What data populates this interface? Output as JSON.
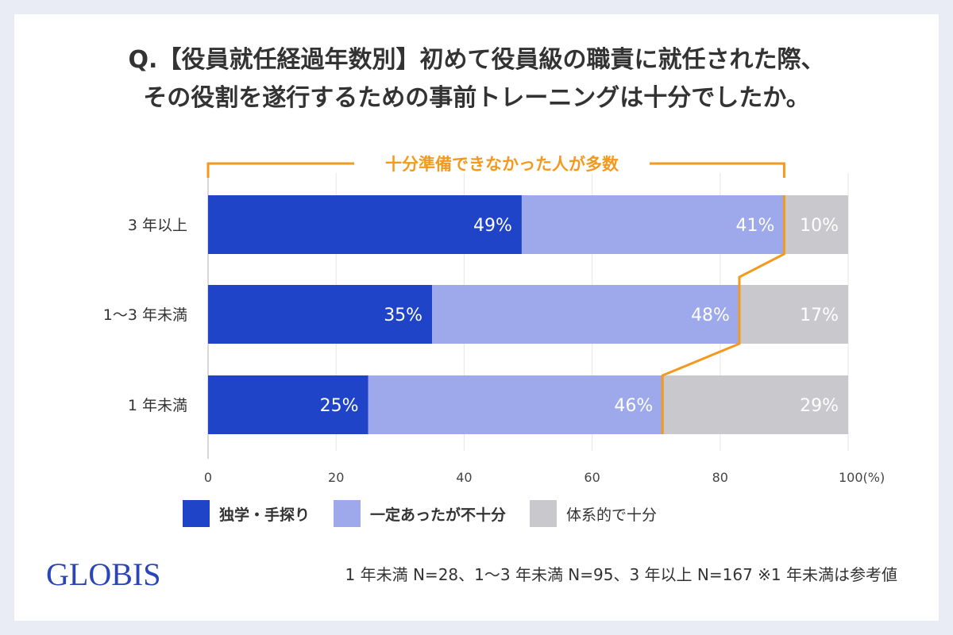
{
  "title": {
    "line1": "Q.【役員就任経過年数別】初めて役員級の職責に就任された際、",
    "line2": "その役割を遂行するための事前トレーニングは十分でしたか。"
  },
  "annotation": "十分準備できなかった人が多数",
  "chart_data": {
    "type": "bar",
    "orientation": "horizontal",
    "stacked": true,
    "categories": [
      "3 年以上",
      "1〜3 年未満",
      "1 年未満"
    ],
    "series": [
      {
        "name": "独学・手探り",
        "values": [
          49,
          35,
          25
        ],
        "color": "#1f44c8"
      },
      {
        "name": "一定あったが不十分",
        "values": [
          41,
          48,
          46
        ],
        "color": "#9da9ea"
      },
      {
        "name": "体系的で十分",
        "values": [
          10,
          17,
          29
        ],
        "color": "#c9c9cd"
      }
    ],
    "value_labels": [
      [
        "49%",
        "41%",
        "10%"
      ],
      [
        "35%",
        "48%",
        "17%"
      ],
      [
        "25%",
        "46%",
        "29%"
      ]
    ],
    "xlim": [
      0,
      100
    ],
    "x_ticks": [
      "0",
      "20",
      "40",
      "60",
      "80",
      "100(%)"
    ],
    "grid": true,
    "legend_position": "bottom",
    "annotation_color": "#f39a1e"
  },
  "logo": "GLOBIS",
  "footnote": "1 年未満 N=28、1〜3 年未満 N=95、3 年以上 N=167 ※1 年未満は参考値"
}
